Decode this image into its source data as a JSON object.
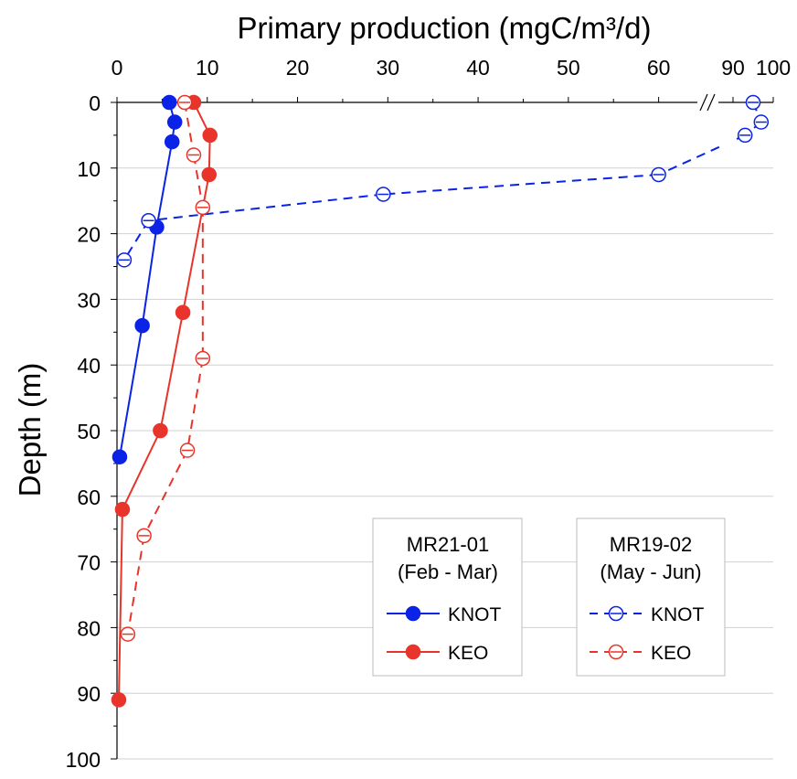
{
  "chart_data": {
    "type": "line",
    "title": "",
    "xlabel": "Primary production (mgC/m³/d)",
    "ylabel": "Depth (m)",
    "x_axis": {
      "position": "top",
      "broken": true,
      "segments": [
        {
          "range": [
            0,
            65
          ],
          "ticks": [
            0,
            10,
            20,
            30,
            40,
            50,
            60
          ]
        },
        {
          "range": [
            85,
            100
          ],
          "ticks": [
            90,
            100
          ]
        }
      ],
      "tick_labels": [
        "0",
        "10",
        "20",
        "30",
        "40",
        "50",
        "60",
        "90",
        "100"
      ]
    },
    "y_axis": {
      "range": [
        0,
        100
      ],
      "inverted": true,
      "ticks": [
        0,
        10,
        20,
        30,
        40,
        50,
        60,
        70,
        80,
        90,
        100
      ],
      "tick_labels": [
        "0",
        "10",
        "20",
        "30",
        "40",
        "50",
        "60",
        "70",
        "80",
        "90",
        "100"
      ]
    },
    "grid": {
      "horizontal": true,
      "vertical": false
    },
    "legends": [
      {
        "title_line1": "MR21-01",
        "title_line2": "(Feb - Mar)",
        "entries": [
          {
            "label": "KNOT",
            "color": "#0a23e6",
            "style": "solid-filled"
          },
          {
            "label": "KEO",
            "color": "#e8342a",
            "style": "solid-filled"
          }
        ]
      },
      {
        "title_line1": "MR19-02",
        "title_line2": "(May - Jun)",
        "entries": [
          {
            "label": "KNOT",
            "color": "#0a23e6",
            "style": "dashed-open"
          },
          {
            "label": "KEO",
            "color": "#e8342a",
            "style": "dashed-open"
          }
        ]
      }
    ],
    "series": [
      {
        "name": "MR21-01 KNOT",
        "color": "#0a23e6",
        "style": "solid-filled",
        "points": [
          [
            5.8,
            0
          ],
          [
            6.4,
            3
          ],
          [
            6.1,
            6
          ],
          [
            4.4,
            19
          ],
          [
            2.8,
            34
          ],
          [
            0.3,
            54
          ]
        ]
      },
      {
        "name": "MR21-01 KEO",
        "color": "#e8342a",
        "style": "solid-filled",
        "points": [
          [
            8.5,
            0
          ],
          [
            10.3,
            5
          ],
          [
            10.2,
            11
          ],
          [
            7.3,
            32
          ],
          [
            4.8,
            50
          ],
          [
            0.6,
            62
          ],
          [
            0.2,
            91
          ]
        ]
      },
      {
        "name": "MR19-02 KNOT",
        "color": "#0a23e6",
        "style": "dashed-open",
        "points": [
          [
            95,
            0
          ],
          [
            97,
            3
          ],
          [
            93,
            5
          ],
          [
            60,
            11
          ],
          [
            29.5,
            14
          ],
          [
            3.5,
            18
          ],
          [
            0.8,
            24
          ]
        ]
      },
      {
        "name": "MR19-02 KEO",
        "color": "#e8342a",
        "style": "dashed-open",
        "points": [
          [
            7.5,
            0
          ],
          [
            8.5,
            8
          ],
          [
            9.5,
            16
          ],
          [
            9.5,
            39
          ],
          [
            7.8,
            53
          ],
          [
            3.0,
            66
          ],
          [
            1.2,
            81
          ]
        ]
      }
    ]
  }
}
